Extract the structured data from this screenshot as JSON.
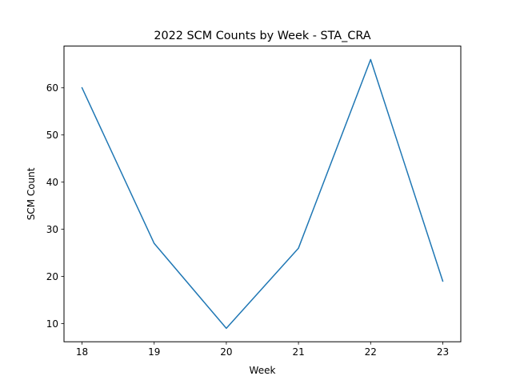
{
  "chart_data": {
    "type": "line",
    "title": "2022 SCM Counts by Week - STA_CRA",
    "xlabel": "Week",
    "ylabel": "SCM Count",
    "x": [
      18,
      19,
      20,
      21,
      22,
      23
    ],
    "series": [
      {
        "values": [
          60,
          27,
          9,
          26,
          66,
          19
        ],
        "color": "#1f77b4"
      }
    ],
    "x_ticks": [
      "18",
      "19",
      "20",
      "21",
      "22",
      "23"
    ],
    "y_ticks": [
      "10",
      "20",
      "30",
      "40",
      "50",
      "60"
    ],
    "xlim": [
      17.75,
      23.25
    ],
    "ylim": [
      6.15,
      68.85
    ],
    "grid": false,
    "legend": "none"
  }
}
